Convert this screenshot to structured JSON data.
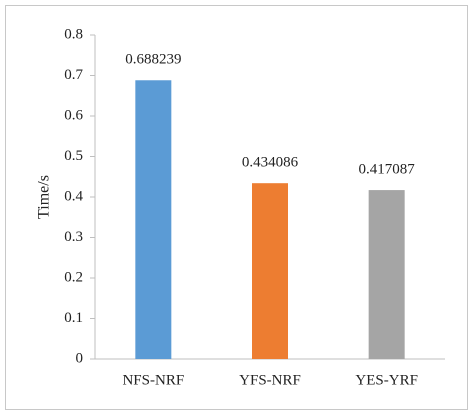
{
  "chart_data": {
    "type": "bar",
    "y_label": "Time/s",
    "categories": [
      "NFS-NRF",
      "YFS-NRF",
      "YES-YRF"
    ],
    "values": [
      0.688239,
      0.434086,
      0.417087
    ],
    "colors": [
      "#5b9bd5",
      "#ed7d31",
      "#a5a5a5"
    ],
    "ylim": [
      0,
      0.8
    ],
    "yticks": [
      0,
      0.1,
      0.2,
      0.3,
      0.4,
      0.5,
      0.6,
      0.7,
      0.8
    ],
    "grid": false
  }
}
